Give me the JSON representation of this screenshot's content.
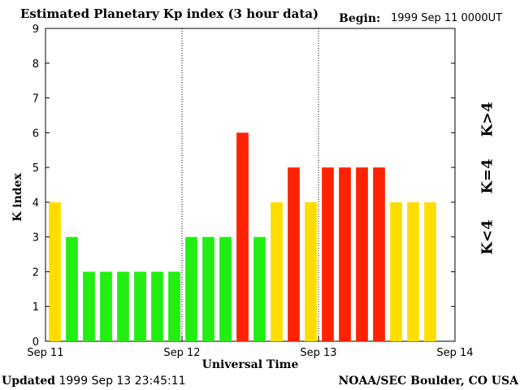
{
  "header": {
    "title": "Estimated Planetary Kp index (3 hour data)",
    "begin_label": "Begin:",
    "begin_value": "1999 Sep 11 0000UT"
  },
  "footer": {
    "updated_label": "Updated",
    "updated_value": "1999 Sep 13 23:45:11",
    "source": "NOAA/SEC Boulder, CO USA"
  },
  "legend": {
    "high": "K>4",
    "equal": "K=4",
    "low": "K<4"
  },
  "colors": {
    "low": "#22ee11",
    "equal": "#ffdd00",
    "high": "#ff2200"
  },
  "chart_data": {
    "type": "bar",
    "title": "Estimated Planetary Kp index (3 hour data)",
    "xlabel": "Universal Time",
    "ylabel": "K index",
    "ylim": [
      0,
      9
    ],
    "yticks": [
      0,
      1,
      2,
      3,
      4,
      5,
      6,
      7,
      8,
      9
    ],
    "xticks": [
      "Sep 11",
      "Sep 12",
      "Sep 13",
      "Sep 14"
    ],
    "day_dividers": true,
    "values": [
      4,
      3,
      2,
      2,
      2,
      2,
      2,
      2,
      3,
      3,
      3,
      6,
      3,
      4,
      5,
      4,
      5,
      5,
      5,
      5,
      4,
      4,
      4
    ]
  }
}
